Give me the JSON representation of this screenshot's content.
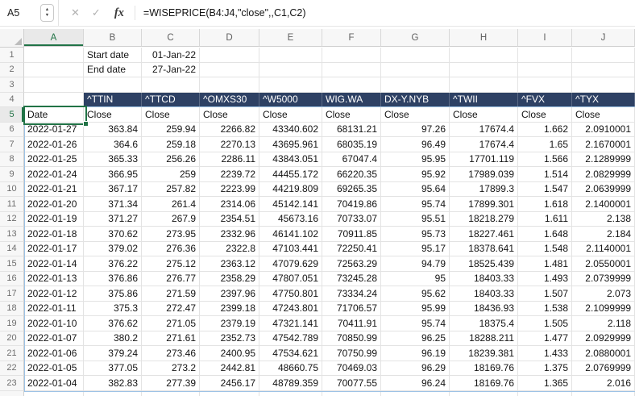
{
  "formula_bar": {
    "cell_reference": "A5",
    "formula": "=WISEPRICE(B4:J4,\"close\",,C1,C2)"
  },
  "icons": {
    "cancel": "✕",
    "confirm": "✓",
    "function": "fx",
    "stepper_up": "▲",
    "stepper_down": "▼"
  },
  "colors": {
    "ticker_header_fill": "#2e4164",
    "ticker_header_text": "#ffffff",
    "selection_green": "#217346",
    "spill_border_blue": "#9dc3e6"
  },
  "sheet": {
    "column_letters": [
      "A",
      "B",
      "C",
      "D",
      "E",
      "F",
      "G",
      "H",
      "I",
      "J"
    ],
    "row_numbers": [
      1,
      2,
      3,
      4,
      5,
      6,
      7,
      8,
      9,
      10,
      11,
      12,
      13,
      14,
      15,
      16,
      17,
      18,
      19,
      20,
      21,
      22,
      23
    ],
    "selected_cell": "A5",
    "inputs": {
      "start_date_label": "Start date",
      "start_date_value": "01-Jan-22",
      "end_date_label": "End date",
      "end_date_value": "27-Jan-22"
    },
    "tickers": [
      "^TTIN",
      "^TTCD",
      "^OMXS30",
      "^W5000",
      "WIG.WA",
      "DX-Y.NYB",
      "^TWII",
      "^FVX",
      "^TYX"
    ],
    "date_column_header": "Date",
    "close_label": "Close",
    "data_rows": [
      {
        "date": "2022-01-27",
        "values": [
          "363.84",
          "259.94",
          "2266.82",
          "43340.602",
          "68131.21",
          "97.26",
          "17674.4",
          "1.662",
          "2.0910001"
        ]
      },
      {
        "date": "2022-01-26",
        "values": [
          "364.6",
          "259.18",
          "2270.13",
          "43695.961",
          "68035.19",
          "96.49",
          "17674.4",
          "1.65",
          "2.1670001"
        ]
      },
      {
        "date": "2022-01-25",
        "values": [
          "365.33",
          "256.26",
          "2286.11",
          "43843.051",
          "67047.4",
          "95.95",
          "17701.119",
          "1.566",
          "2.1289999"
        ]
      },
      {
        "date": "2022-01-24",
        "values": [
          "366.95",
          "259",
          "2239.72",
          "44455.172",
          "66220.35",
          "95.92",
          "17989.039",
          "1.514",
          "2.0829999"
        ]
      },
      {
        "date": "2022-01-21",
        "values": [
          "367.17",
          "257.82",
          "2223.99",
          "44219.809",
          "69265.35",
          "95.64",
          "17899.3",
          "1.547",
          "2.0639999"
        ]
      },
      {
        "date": "2022-01-20",
        "values": [
          "371.34",
          "261.4",
          "2314.06",
          "45142.141",
          "70419.86",
          "95.74",
          "17899.301",
          "1.618",
          "2.1400001"
        ]
      },
      {
        "date": "2022-01-19",
        "values": [
          "371.27",
          "267.9",
          "2354.51",
          "45673.16",
          "70733.07",
          "95.51",
          "18218.279",
          "1.611",
          "2.138"
        ]
      },
      {
        "date": "2022-01-18",
        "values": [
          "370.62",
          "273.95",
          "2332.96",
          "46141.102",
          "70911.85",
          "95.73",
          "18227.461",
          "1.648",
          "2.184"
        ]
      },
      {
        "date": "2022-01-17",
        "values": [
          "379.02",
          "276.36",
          "2322.8",
          "47103.441",
          "72250.41",
          "95.17",
          "18378.641",
          "1.548",
          "2.1140001"
        ]
      },
      {
        "date": "2022-01-14",
        "values": [
          "376.22",
          "275.12",
          "2363.12",
          "47079.629",
          "72563.29",
          "94.79",
          "18525.439",
          "1.481",
          "2.0550001"
        ]
      },
      {
        "date": "2022-01-13",
        "values": [
          "376.86",
          "276.77",
          "2358.29",
          "47807.051",
          "73245.28",
          "95",
          "18403.33",
          "1.493",
          "2.0739999"
        ]
      },
      {
        "date": "2022-01-12",
        "values": [
          "375.86",
          "271.59",
          "2397.96",
          "47750.801",
          "73334.24",
          "95.62",
          "18403.33",
          "1.507",
          "2.073"
        ]
      },
      {
        "date": "2022-01-11",
        "values": [
          "375.3",
          "272.47",
          "2399.18",
          "47243.801",
          "71706.57",
          "95.99",
          "18436.93",
          "1.538",
          "2.1099999"
        ]
      },
      {
        "date": "2022-01-10",
        "values": [
          "376.62",
          "271.05",
          "2379.19",
          "47321.141",
          "70411.91",
          "95.74",
          "18375.4",
          "1.505",
          "2.118"
        ]
      },
      {
        "date": "2022-01-07",
        "values": [
          "380.2",
          "271.61",
          "2352.73",
          "47542.789",
          "70850.99",
          "96.25",
          "18288.211",
          "1.477",
          "2.0929999"
        ]
      },
      {
        "date": "2022-01-06",
        "values": [
          "379.24",
          "273.46",
          "2400.95",
          "47534.621",
          "70750.99",
          "96.19",
          "18239.381",
          "1.433",
          "2.0880001"
        ]
      },
      {
        "date": "2022-01-05",
        "values": [
          "377.05",
          "273.2",
          "2442.81",
          "48660.75",
          "70469.03",
          "96.29",
          "18169.76",
          "1.375",
          "2.0769999"
        ]
      },
      {
        "date": "2022-01-04",
        "values": [
          "382.83",
          "277.39",
          "2456.17",
          "48789.359",
          "70077.55",
          "96.24",
          "18169.76",
          "1.365",
          "2.016"
        ]
      }
    ]
  }
}
